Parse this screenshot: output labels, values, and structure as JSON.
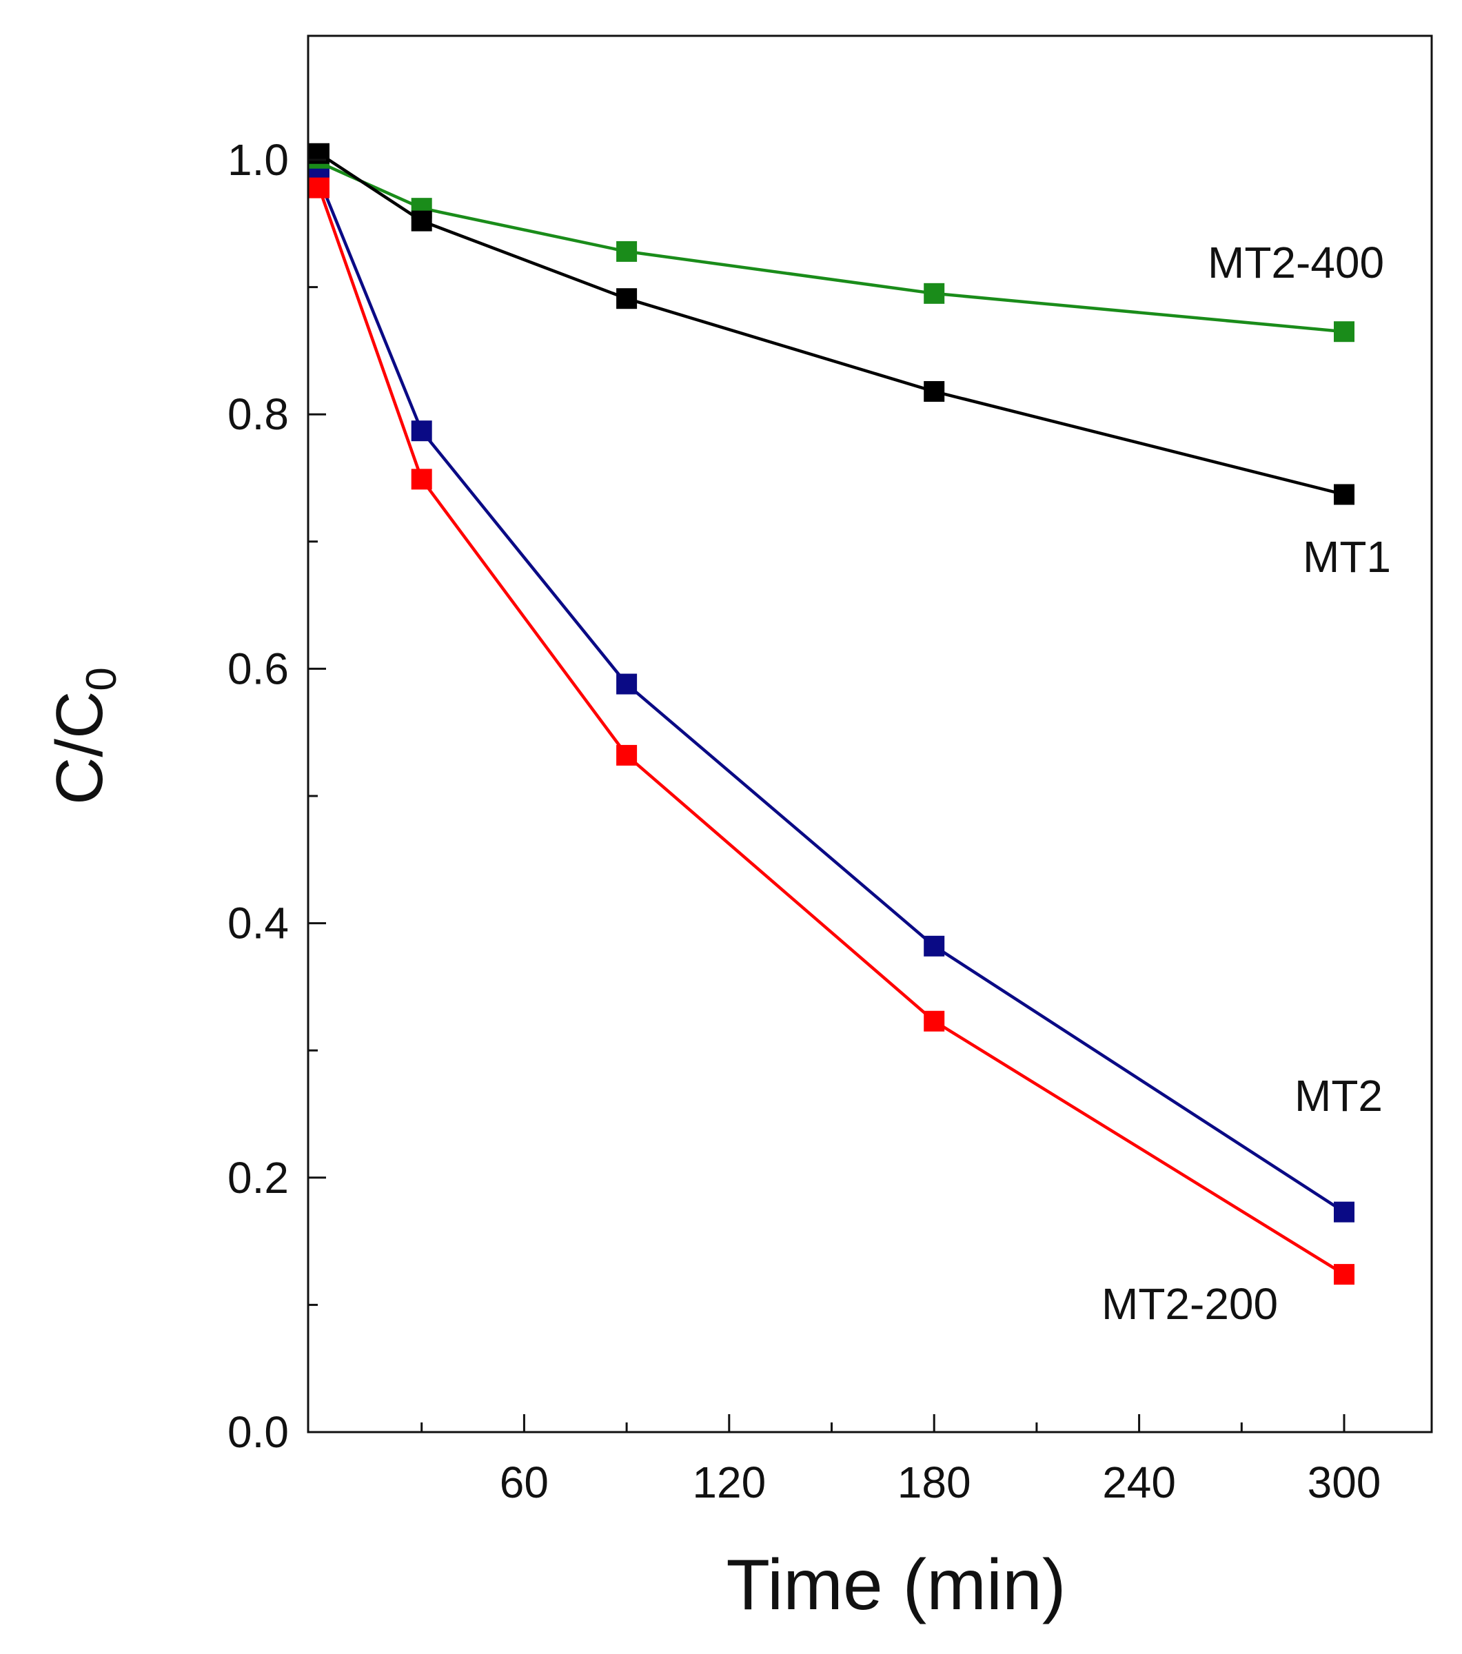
{
  "chart_data": {
    "type": "line",
    "title": "",
    "xlabel": "Time (min)",
    "ylabel": "C/C",
    "ylabel_subscript": "0",
    "xlim": [
      -5,
      315
    ],
    "ylim": [
      0.0,
      1.1
    ],
    "xticks": [
      60,
      120,
      180,
      240,
      300
    ],
    "xtick_labels": [
      "60",
      "120",
      "180",
      "240",
      "300"
    ],
    "x_minor_ticks": [
      30,
      90,
      150,
      210,
      270
    ],
    "yticks": [
      0.0,
      0.2,
      0.4,
      0.6,
      0.8,
      1.0
    ],
    "ytick_labels": [
      "0.0",
      "0.2",
      "0.4",
      "0.6",
      "0.8",
      "1.0"
    ],
    "grid": false,
    "legend": "inline labels at right end of each series",
    "series": [
      {
        "name": "MT2-400",
        "color": "#1a8c1a",
        "marker": "square",
        "x": [
          0,
          30,
          90,
          180,
          300
        ],
        "y": [
          0.998,
          0.962,
          0.928,
          0.895,
          0.865
        ]
      },
      {
        "name": "MT1",
        "color": "#000000",
        "marker": "square",
        "x": [
          0,
          30,
          90,
          180,
          300
        ],
        "y": [
          1.005,
          0.952,
          0.891,
          0.818,
          0.737
        ]
      },
      {
        "name": "MT2",
        "color": "#0a0a85",
        "marker": "square",
        "x": [
          0,
          30,
          90,
          180,
          300
        ],
        "y": [
          0.985,
          0.787,
          0.588,
          0.382,
          0.173
        ]
      },
      {
        "name": "MT2-200",
        "color": "#ff0000",
        "marker": "square",
        "x": [
          0,
          30,
          90,
          180,
          300
        ],
        "y": [
          0.978,
          0.749,
          0.532,
          0.323,
          0.124
        ]
      }
    ],
    "annotations": [
      {
        "text": "MT2-400",
        "series": "MT2-400"
      },
      {
        "text": "MT1",
        "series": "MT1"
      },
      {
        "text": "MT2",
        "series": "MT2"
      },
      {
        "text": "MT2-200",
        "series": "MT2-200"
      }
    ]
  }
}
